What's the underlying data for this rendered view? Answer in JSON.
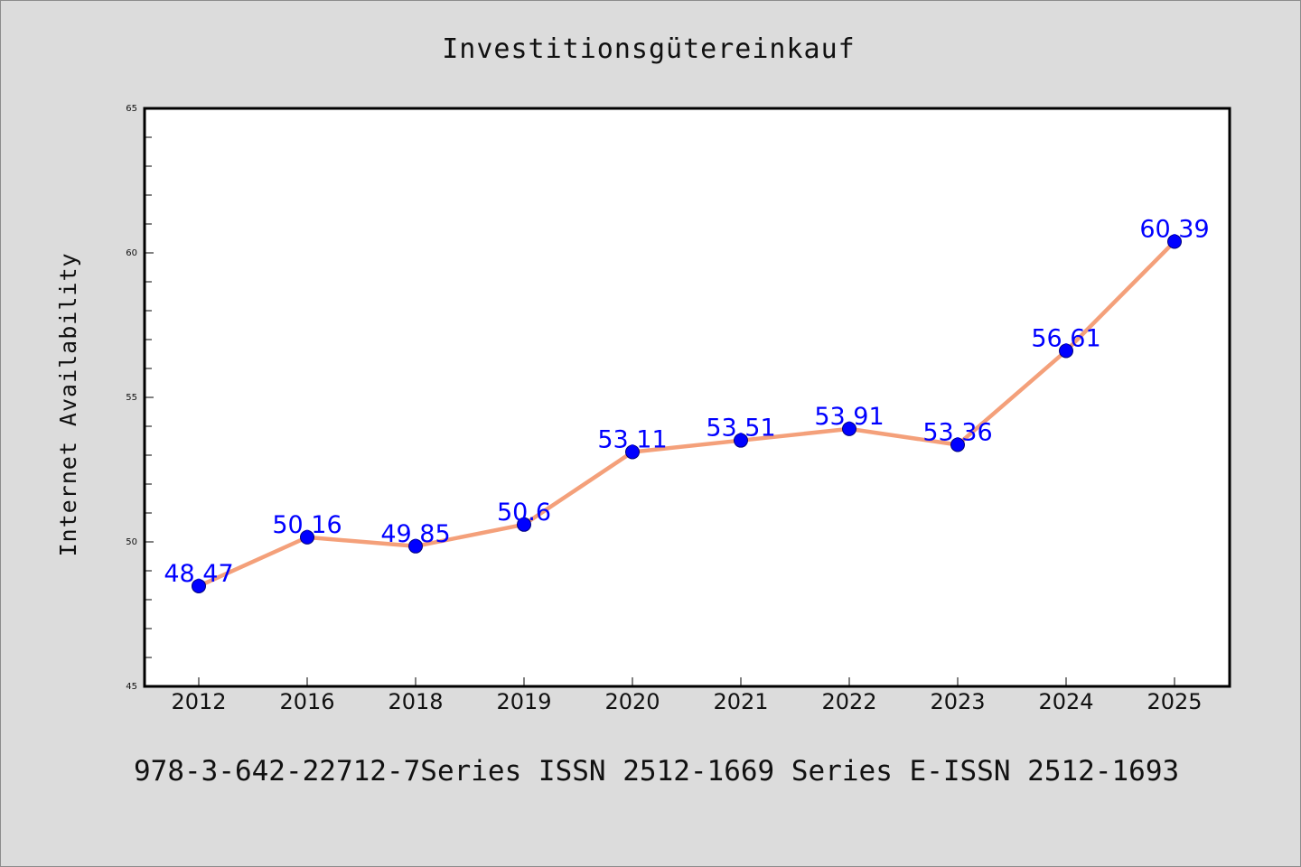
{
  "chart_data": {
    "type": "line",
    "title": "Investitionsgütereinkauf",
    "ylabel": "Internet Availability",
    "xlabel": "",
    "categories": [
      "2012",
      "2016",
      "2018",
      "2019",
      "2020",
      "2021",
      "2022",
      "2023",
      "2024",
      "2025"
    ],
    "series": [
      {
        "values": [
          48.47,
          50.16,
          49.85,
          50.6,
          53.11,
          53.51,
          53.91,
          53.36,
          56.61,
          60.39
        ],
        "labels": [
          "48.47",
          "50.16",
          "49.85",
          "50.6",
          "53.11",
          "53.51",
          "53.91",
          "53.36",
          "56.61",
          "60.39"
        ]
      }
    ],
    "ylim": [
      45,
      65
    ],
    "yticks": [
      "45",
      "50",
      "55",
      "60",
      "65"
    ],
    "grid": false,
    "legend": "none",
    "colors": {
      "background": "#dcdcdc",
      "plot_background": "#ffffff",
      "line": "#f4a07a",
      "marker": "#0000ff",
      "data_label": "#0000ff",
      "axis": "#000000"
    }
  },
  "footer": {
    "text": "978-3-642-22712-7Series ISSN 2512-1669 Series E-ISSN 2512-1693"
  }
}
